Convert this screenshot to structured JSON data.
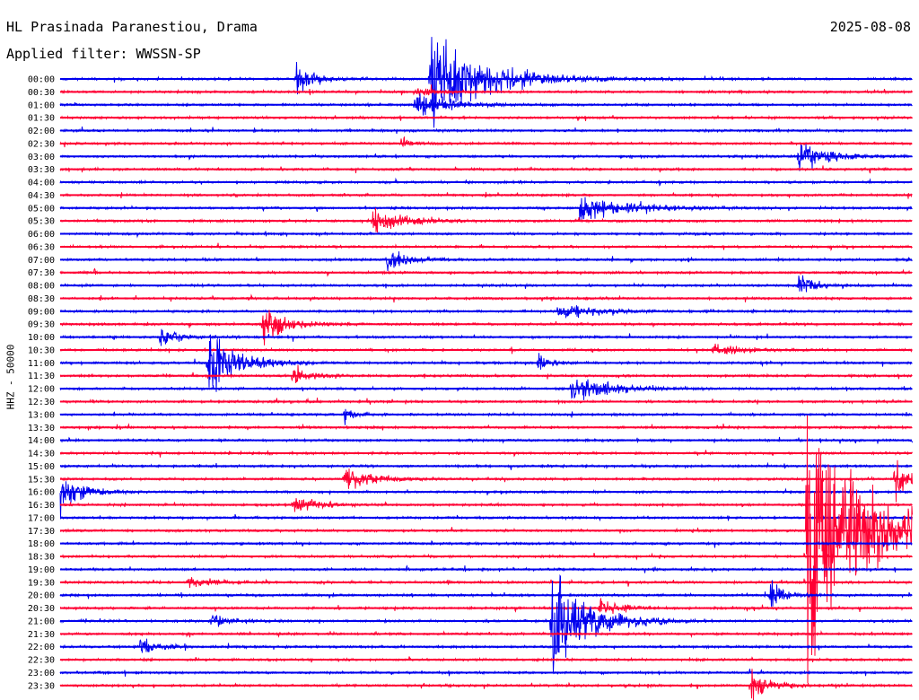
{
  "header": {
    "station": "HL Prasinada Paranestiou, Drama",
    "date": "2025-08-08",
    "filter": "Applied filter: WWSSN-SP",
    "channel": "HHZ - 50000"
  },
  "chart_data": {
    "type": "line",
    "title": "HL Prasinada Paranestiou, Drama",
    "subtitle": "Applied filter: WWSSN-SP",
    "ylabel": "HHZ - 50000",
    "colors": [
      "#0000ee",
      "#ff0033"
    ],
    "rows": [
      "00:00",
      "00:30",
      "01:00",
      "01:30",
      "02:00",
      "02:30",
      "03:00",
      "03:30",
      "04:00",
      "04:30",
      "05:00",
      "05:30",
      "06:00",
      "06:30",
      "07:00",
      "07:30",
      "08:00",
      "08:30",
      "09:00",
      "09:30",
      "10:00",
      "10:30",
      "11:00",
      "11:30",
      "12:00",
      "12:30",
      "13:00",
      "13:30",
      "14:00",
      "14:30",
      "15:00",
      "15:30",
      "16:00",
      "16:30",
      "17:00",
      "17:30",
      "18:00",
      "18:30",
      "19:00",
      "19:30",
      "20:00",
      "20:30",
      "21:00",
      "21:30",
      "22:00",
      "22:30",
      "23:00",
      "23:30"
    ],
    "row_minutes": 30,
    "events": [
      {
        "row": "00:00",
        "minute": 8.3,
        "amplitude": 1.2,
        "duration_min": 1.0
      },
      {
        "row": "00:00",
        "minute": 13.0,
        "amplitude": 3.5,
        "duration_min": 3.0
      },
      {
        "row": "00:30",
        "minute": 12.5,
        "amplitude": 0.4,
        "duration_min": 1.0
      },
      {
        "row": "01:00",
        "minute": 12.5,
        "amplitude": 1.2,
        "duration_min": 1.5
      },
      {
        "row": "02:30",
        "minute": 12.0,
        "amplitude": 0.5,
        "duration_min": 0.5
      },
      {
        "row": "03:00",
        "minute": 26.0,
        "amplitude": 1.2,
        "duration_min": 1.5
      },
      {
        "row": "05:00",
        "minute": 18.3,
        "amplitude": 1.0,
        "duration_min": 2.5
      },
      {
        "row": "05:30",
        "minute": 11.0,
        "amplitude": 1.2,
        "duration_min": 1.5
      },
      {
        "row": "07:00",
        "minute": 11.5,
        "amplitude": 1.0,
        "duration_min": 1.0
      },
      {
        "row": "08:00",
        "minute": 26.0,
        "amplitude": 1.0,
        "duration_min": 0.8
      },
      {
        "row": "09:00",
        "minute": 17.5,
        "amplitude": 0.6,
        "duration_min": 2.0
      },
      {
        "row": "09:30",
        "minute": 7.1,
        "amplitude": 1.8,
        "duration_min": 1.2
      },
      {
        "row": "10:00",
        "minute": 3.5,
        "amplitude": 0.8,
        "duration_min": 1.0
      },
      {
        "row": "10:30",
        "minute": 23.0,
        "amplitude": 0.5,
        "duration_min": 1.5
      },
      {
        "row": "11:00",
        "minute": 5.2,
        "amplitude": 2.5,
        "duration_min": 1.5
      },
      {
        "row": "11:00",
        "minute": 16.8,
        "amplitude": 0.8,
        "duration_min": 0.6
      },
      {
        "row": "11:30",
        "minute": 8.2,
        "amplitude": 0.8,
        "duration_min": 0.8
      },
      {
        "row": "12:00",
        "minute": 18.0,
        "amplitude": 1.0,
        "duration_min": 2.0
      },
      {
        "row": "13:00",
        "minute": 10.0,
        "amplitude": 0.5,
        "duration_min": 0.6
      },
      {
        "row": "15:30",
        "minute": 10.0,
        "amplitude": 1.0,
        "duration_min": 1.5
      },
      {
        "row": "15:30",
        "minute": 29.4,
        "amplitude": 2.0,
        "duration_min": 0.6
      },
      {
        "row": "16:00",
        "minute": 0.0,
        "amplitude": 1.5,
        "duration_min": 1.2
      },
      {
        "row": "16:30",
        "minute": 8.2,
        "amplitude": 0.7,
        "duration_min": 1.2
      },
      {
        "row": "17:30",
        "minute": 26.3,
        "amplitude": 10.0,
        "duration_min": 3.0
      },
      {
        "row": "19:30",
        "minute": 4.5,
        "amplitude": 0.5,
        "duration_min": 1.2
      },
      {
        "row": "20:00",
        "minute": 25.0,
        "amplitude": 1.0,
        "duration_min": 0.8
      },
      {
        "row": "20:30",
        "minute": 19.0,
        "amplitude": 0.8,
        "duration_min": 1.0
      },
      {
        "row": "21:00",
        "minute": 17.3,
        "amplitude": 4.0,
        "duration_min": 2.0
      },
      {
        "row": "21:00",
        "minute": 5.3,
        "amplitude": 0.5,
        "duration_min": 1.0
      },
      {
        "row": "22:00",
        "minute": 2.8,
        "amplitude": 0.6,
        "duration_min": 1.0
      },
      {
        "row": "23:30",
        "minute": 24.3,
        "amplitude": 1.2,
        "duration_min": 1.0
      }
    ]
  }
}
